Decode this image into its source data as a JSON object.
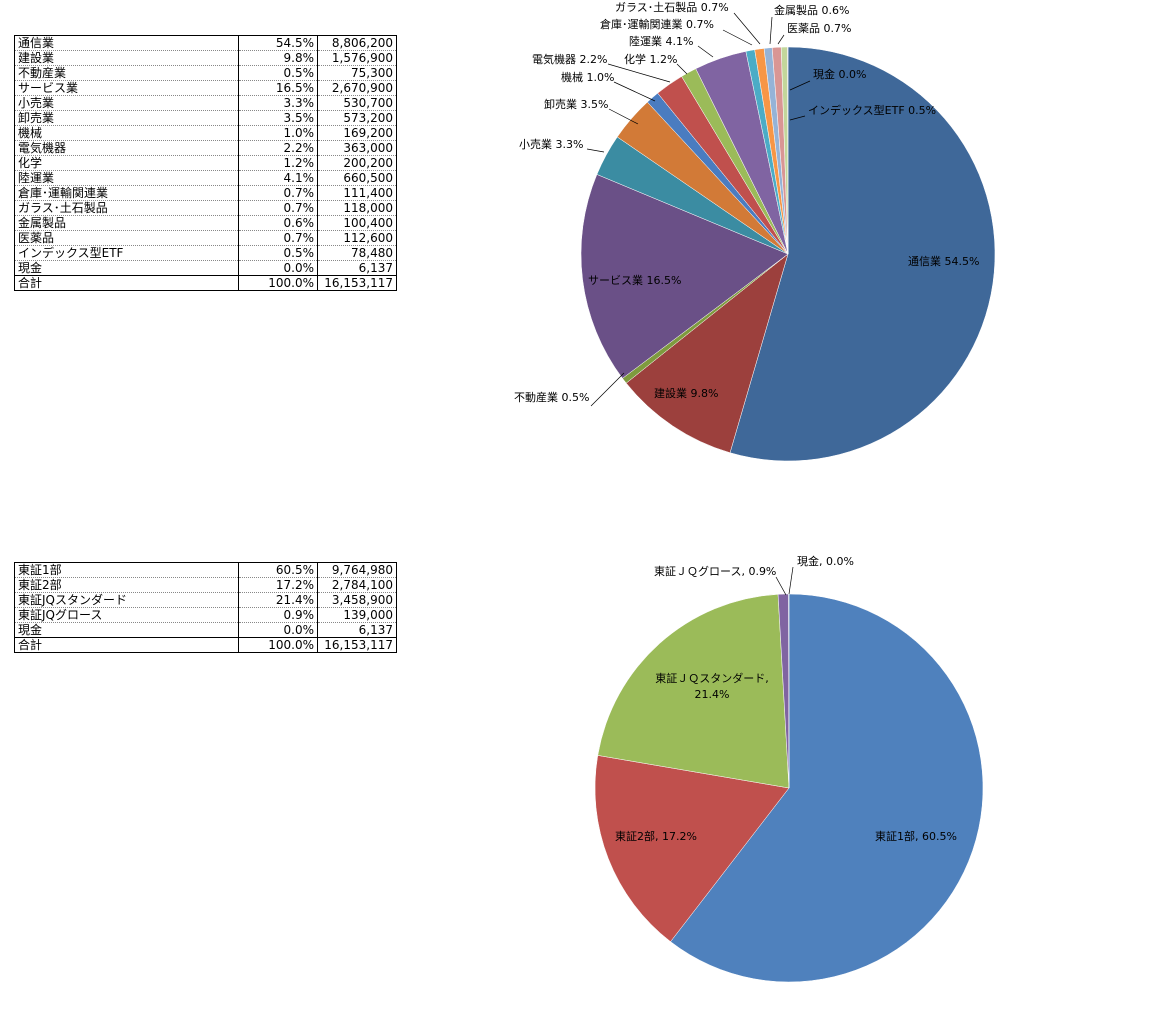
{
  "table1": {
    "rows": [
      {
        "name": "通信業",
        "pct": "54.5%",
        "value": "8,806,200"
      },
      {
        "name": "建設業",
        "pct": "9.8%",
        "value": "1,576,900"
      },
      {
        "name": "不動産業",
        "pct": "0.5%",
        "value": "75,300"
      },
      {
        "name": "サービス業",
        "pct": "16.5%",
        "value": "2,670,900"
      },
      {
        "name": "小売業",
        "pct": "3.3%",
        "value": "530,700"
      },
      {
        "name": "卸売業",
        "pct": "3.5%",
        "value": "573,200"
      },
      {
        "name": "機械",
        "pct": "1.0%",
        "value": "169,200"
      },
      {
        "name": "電気機器",
        "pct": "2.2%",
        "value": "363,000"
      },
      {
        "name": "化学",
        "pct": "1.2%",
        "value": "200,200"
      },
      {
        "name": "陸運業",
        "pct": "4.1%",
        "value": "660,500"
      },
      {
        "name": "倉庫･運輸関連業",
        "pct": "0.7%",
        "value": "111,400"
      },
      {
        "name": "ガラス･土石製品",
        "pct": "0.7%",
        "value": "118,000"
      },
      {
        "name": "金属製品",
        "pct": "0.6%",
        "value": "100,400"
      },
      {
        "name": "医薬品",
        "pct": "0.7%",
        "value": "112,600"
      },
      {
        "name": "インデックス型ETF",
        "pct": "0.5%",
        "value": "78,480"
      },
      {
        "name": "現金",
        "pct": "0.0%",
        "value": "6,137"
      }
    ],
    "total": {
      "name": "合計",
      "pct": "100.0%",
      "value": "16,153,117"
    }
  },
  "table2": {
    "rows": [
      {
        "name": "東証1部",
        "pct": "60.5%",
        "value": "9,764,980"
      },
      {
        "name": "東証2部",
        "pct": "17.2%",
        "value": "2,784,100"
      },
      {
        "name": "東証JQスタンダード",
        "pct": "21.4%",
        "value": "3,458,900"
      },
      {
        "name": "東証JQグロース",
        "pct": "0.9%",
        "value": "139,000"
      },
      {
        "name": "現金",
        "pct": "0.0%",
        "value": "6,137"
      }
    ],
    "total": {
      "name": "合計",
      "pct": "100.0%",
      "value": "16,153,117"
    }
  },
  "chart_data": [
    {
      "type": "pie",
      "slices": [
        {
          "label": "通信業",
          "value": 8806200,
          "display": "通信業 54.5%",
          "color": "#3f6899"
        },
        {
          "label": "建設業",
          "value": 1576900,
          "display": "建設業 9.8%",
          "color": "#9c403d"
        },
        {
          "label": "不動産業",
          "value": 75300,
          "display": "不動産業 0.5%",
          "color": "#7e9b3e"
        },
        {
          "label": "サービス業",
          "value": 2670900,
          "display": "サービス業 16.5%",
          "color": "#6a5087"
        },
        {
          "label": "小売業",
          "value": 530700,
          "display": "小売業 3.3%",
          "color": "#3b8ca2"
        },
        {
          "label": "卸売業",
          "value": 573200,
          "display": "卸売業 3.5%",
          "color": "#d27a37"
        },
        {
          "label": "機械",
          "value": 169200,
          "display": "機械 1.0%",
          "color": "#4a7cc0"
        },
        {
          "label": "電気機器",
          "value": 363000,
          "display": "電気機器 2.2%",
          "color": "#c0504d"
        },
        {
          "label": "化学",
          "value": 200200,
          "display": "化学 1.2%",
          "color": "#9bbb59"
        },
        {
          "label": "陸運業",
          "value": 660500,
          "display": "陸運業 4.1%",
          "color": "#8064a2"
        },
        {
          "label": "倉庫･運輸関連業",
          "value": 111400,
          "display": "倉庫･運輸関連業 0.7%",
          "color": "#4bacc6"
        },
        {
          "label": "ガラス･土石製品",
          "value": 118000,
          "display": "ガラス･土石製品 0.7%",
          "color": "#f79646"
        },
        {
          "label": "金属製品",
          "value": 100400,
          "display": "金属製品 0.6%",
          "color": "#95b3d7"
        },
        {
          "label": "医薬品",
          "value": 112600,
          "display": "医薬品 0.7%",
          "color": "#d99694"
        },
        {
          "label": "インデックス型ETF",
          "value": 78480,
          "display": "インデックス型ETF 0.5%",
          "color": "#c3d69b"
        },
        {
          "label": "現金",
          "value": 6137,
          "display": "現金 0.0%",
          "color": "#b2a2c7"
        }
      ]
    },
    {
      "type": "pie",
      "slices": [
        {
          "label": "東証1部",
          "value": 9764980,
          "display": "東証1部, 60.5%",
          "color": "#4f81bd"
        },
        {
          "label": "東証2部",
          "value": 2784100,
          "display": "東証2部, 17.2%",
          "color": "#c0504d"
        },
        {
          "label": "東証ＪＱスタンダード",
          "value": 3458900,
          "display": "東証ＪＱスタンダード, 21.4%",
          "color": "#9bbb59"
        },
        {
          "label": "東証ＪＱグロース",
          "value": 139000,
          "display": "東証ＪＱグロース, 0.9%",
          "color": "#8064a2"
        },
        {
          "label": "現金",
          "value": 6137,
          "display": "現金, 0.0%",
          "color": "#4bacc6"
        }
      ]
    }
  ]
}
